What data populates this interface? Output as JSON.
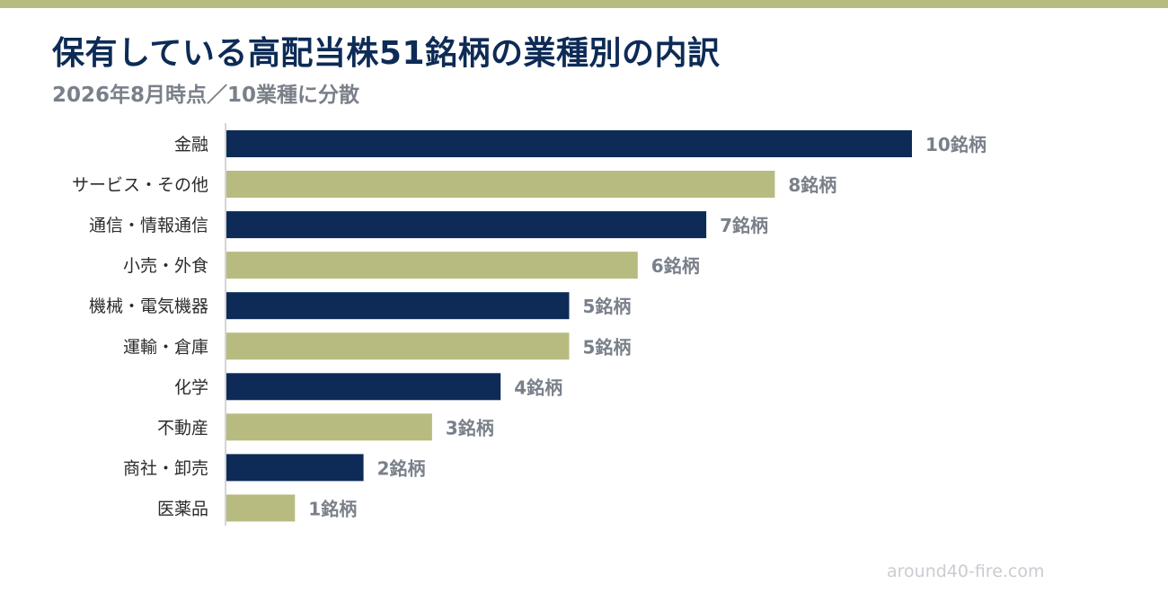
{
  "header": {
    "title": "保有している高配当株51銘柄の業種別の内訳",
    "subtitle": "2026年8月時点／10業種に分散"
  },
  "watermark": "around40-fire.com",
  "colors": {
    "accent": "#b8bb7f",
    "navy": "#0d2b56",
    "olive": "#b8bb7f",
    "value_text": "#7a808a"
  },
  "chart_data": {
    "type": "bar",
    "orientation": "horizontal",
    "title": "保有している高配当株51銘柄の業種別の内訳",
    "subtitle": "2026年8月時点／10業種に分散",
    "xlabel": "",
    "ylabel": "",
    "categories": [
      "金融",
      "サービス・その他",
      "通信・情報通信",
      "小売・外食",
      "機械・電気機器",
      "運輸・倉庫",
      "化学",
      "不動産",
      "商社・卸売",
      "医薬品"
    ],
    "values": [
      10,
      8,
      7,
      6,
      5,
      5,
      4,
      3,
      2,
      1
    ],
    "value_labels": [
      "10銘柄",
      "8銘柄",
      "7銘柄",
      "6銘柄",
      "5銘柄",
      "5銘柄",
      "4銘柄",
      "3銘柄",
      "2銘柄",
      "1銘柄"
    ],
    "bar_colors": [
      "#0d2b56",
      "#b8bb7f",
      "#0d2b56",
      "#b8bb7f",
      "#0d2b56",
      "#b8bb7f",
      "#0d2b56",
      "#b8bb7f",
      "#0d2b56",
      "#b8bb7f"
    ],
    "xlim": [
      0,
      10
    ],
    "grid": false,
    "legend": "none"
  }
}
